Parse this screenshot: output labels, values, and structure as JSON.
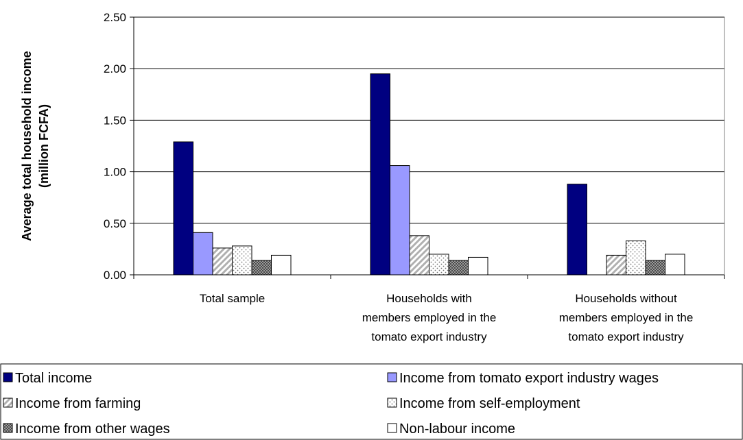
{
  "chart_data": {
    "type": "bar",
    "ylabel": [
      "Average total household income",
      "(million FCFA)"
    ],
    "xlabel": "",
    "ylim": [
      0,
      2.5
    ],
    "ytick_step": 0.5,
    "ytick_labels": [
      "0.00",
      "0.50",
      "1.00",
      "1.50",
      "2.00",
      "2.50"
    ],
    "grid": true,
    "legend_position": "bottom",
    "categories": [
      [
        "Total sample"
      ],
      [
        "Households with",
        "members employed in the",
        "tomato export industry"
      ],
      [
        "Households without",
        "members employed in the",
        "tomato export industry"
      ]
    ],
    "series": [
      {
        "name": "Total income",
        "values": [
          1.29,
          1.95,
          0.88
        ],
        "fill": "#000080",
        "pattern": "solid"
      },
      {
        "name": "Income from tomato export industry wages",
        "values": [
          0.41,
          1.06,
          0.0
        ],
        "fill": "#9999ff",
        "pattern": "solid"
      },
      {
        "name": "Income from farming",
        "values": [
          0.26,
          0.38,
          0.19
        ],
        "fill": "#c0c0c0",
        "pattern": "diagonal"
      },
      {
        "name": "Income from self-employment",
        "values": [
          0.28,
          0.2,
          0.33
        ],
        "fill": "#a0a0a0",
        "pattern": "dots"
      },
      {
        "name": "Income from other wages",
        "values": [
          0.14,
          0.14,
          0.14
        ],
        "fill": "#606060",
        "pattern": "grid"
      },
      {
        "name": "Non-labour income",
        "values": [
          0.19,
          0.17,
          0.2
        ],
        "fill": "#ffffff",
        "pattern": "solid"
      }
    ]
  }
}
